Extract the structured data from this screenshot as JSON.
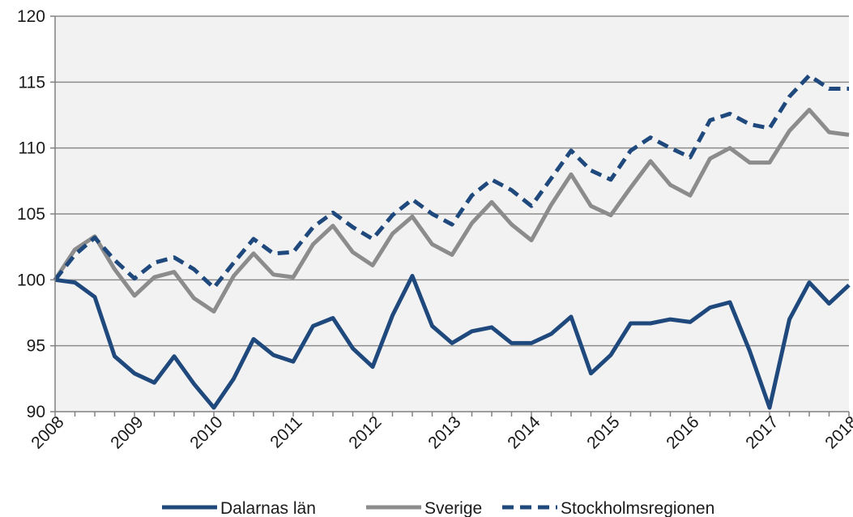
{
  "chart_data": {
    "type": "line",
    "title": "",
    "xlabel": "",
    "ylabel": "",
    "ylim": [
      90,
      120
    ],
    "yticks": [
      90,
      95,
      100,
      105,
      110,
      115,
      120
    ],
    "xticks": [
      "2008",
      "2009",
      "2010",
      "2011",
      "2012",
      "2013",
      "2014",
      "2015",
      "2016",
      "2017",
      "2018"
    ],
    "grid": "horizontal",
    "legend": "bottom",
    "colors": {
      "plot_background": "#f2f2f2",
      "grid": "#8c8c8c"
    },
    "series": [
      {
        "name": "Dalarnas län",
        "color": "#1f497d",
        "style": "solid",
        "values": [
          100,
          99.8,
          98.7,
          94.2,
          92.9,
          92.2,
          94.2,
          92.1,
          90.3,
          92.5,
          95.5,
          94.3,
          93.8,
          96.5,
          97.1,
          94.8,
          93.4,
          97.3,
          100.3,
          96.5,
          95.2,
          96.1,
          96.4,
          95.2,
          95.2,
          95.9,
          97.2,
          92.9,
          94.3,
          96.7,
          96.7,
          97.0,
          96.8,
          97.9,
          98.3,
          94.6,
          90.3,
          97.0,
          99.8,
          98.2,
          99.6
        ]
      },
      {
        "name": "Sverige",
        "color": "#8c8c8c",
        "style": "solid",
        "values": [
          100,
          102.3,
          103.3,
          100.8,
          98.8,
          100.2,
          100.6,
          98.6,
          97.6,
          100.3,
          102.0,
          100.4,
          100.2,
          102.7,
          104.1,
          102.1,
          101.1,
          103.5,
          104.8,
          102.7,
          101.9,
          104.3,
          105.9,
          104.2,
          103.0,
          105.7,
          108.0,
          105.6,
          104.9,
          107.0,
          109.0,
          107.2,
          106.4,
          109.2,
          110.0,
          108.9,
          108.9,
          111.3,
          112.9,
          111.2,
          111.0
        ]
      },
      {
        "name": "Stockholmsregionen",
        "color": "#1f497d",
        "style": "dashed",
        "values": [
          100,
          101.9,
          103.2,
          101.5,
          100.1,
          101.3,
          101.7,
          100.8,
          99.4,
          101.3,
          103.1,
          102.0,
          102.1,
          104.0,
          105.1,
          104.0,
          103.1,
          104.9,
          106.1,
          105.0,
          104.2,
          106.4,
          107.6,
          106.8,
          105.6,
          107.7,
          109.8,
          108.3,
          107.6,
          109.8,
          110.8,
          110.0,
          109.3,
          112.1,
          112.6,
          111.8,
          111.5,
          113.9,
          115.5,
          114.5,
          114.5
        ]
      }
    ]
  }
}
